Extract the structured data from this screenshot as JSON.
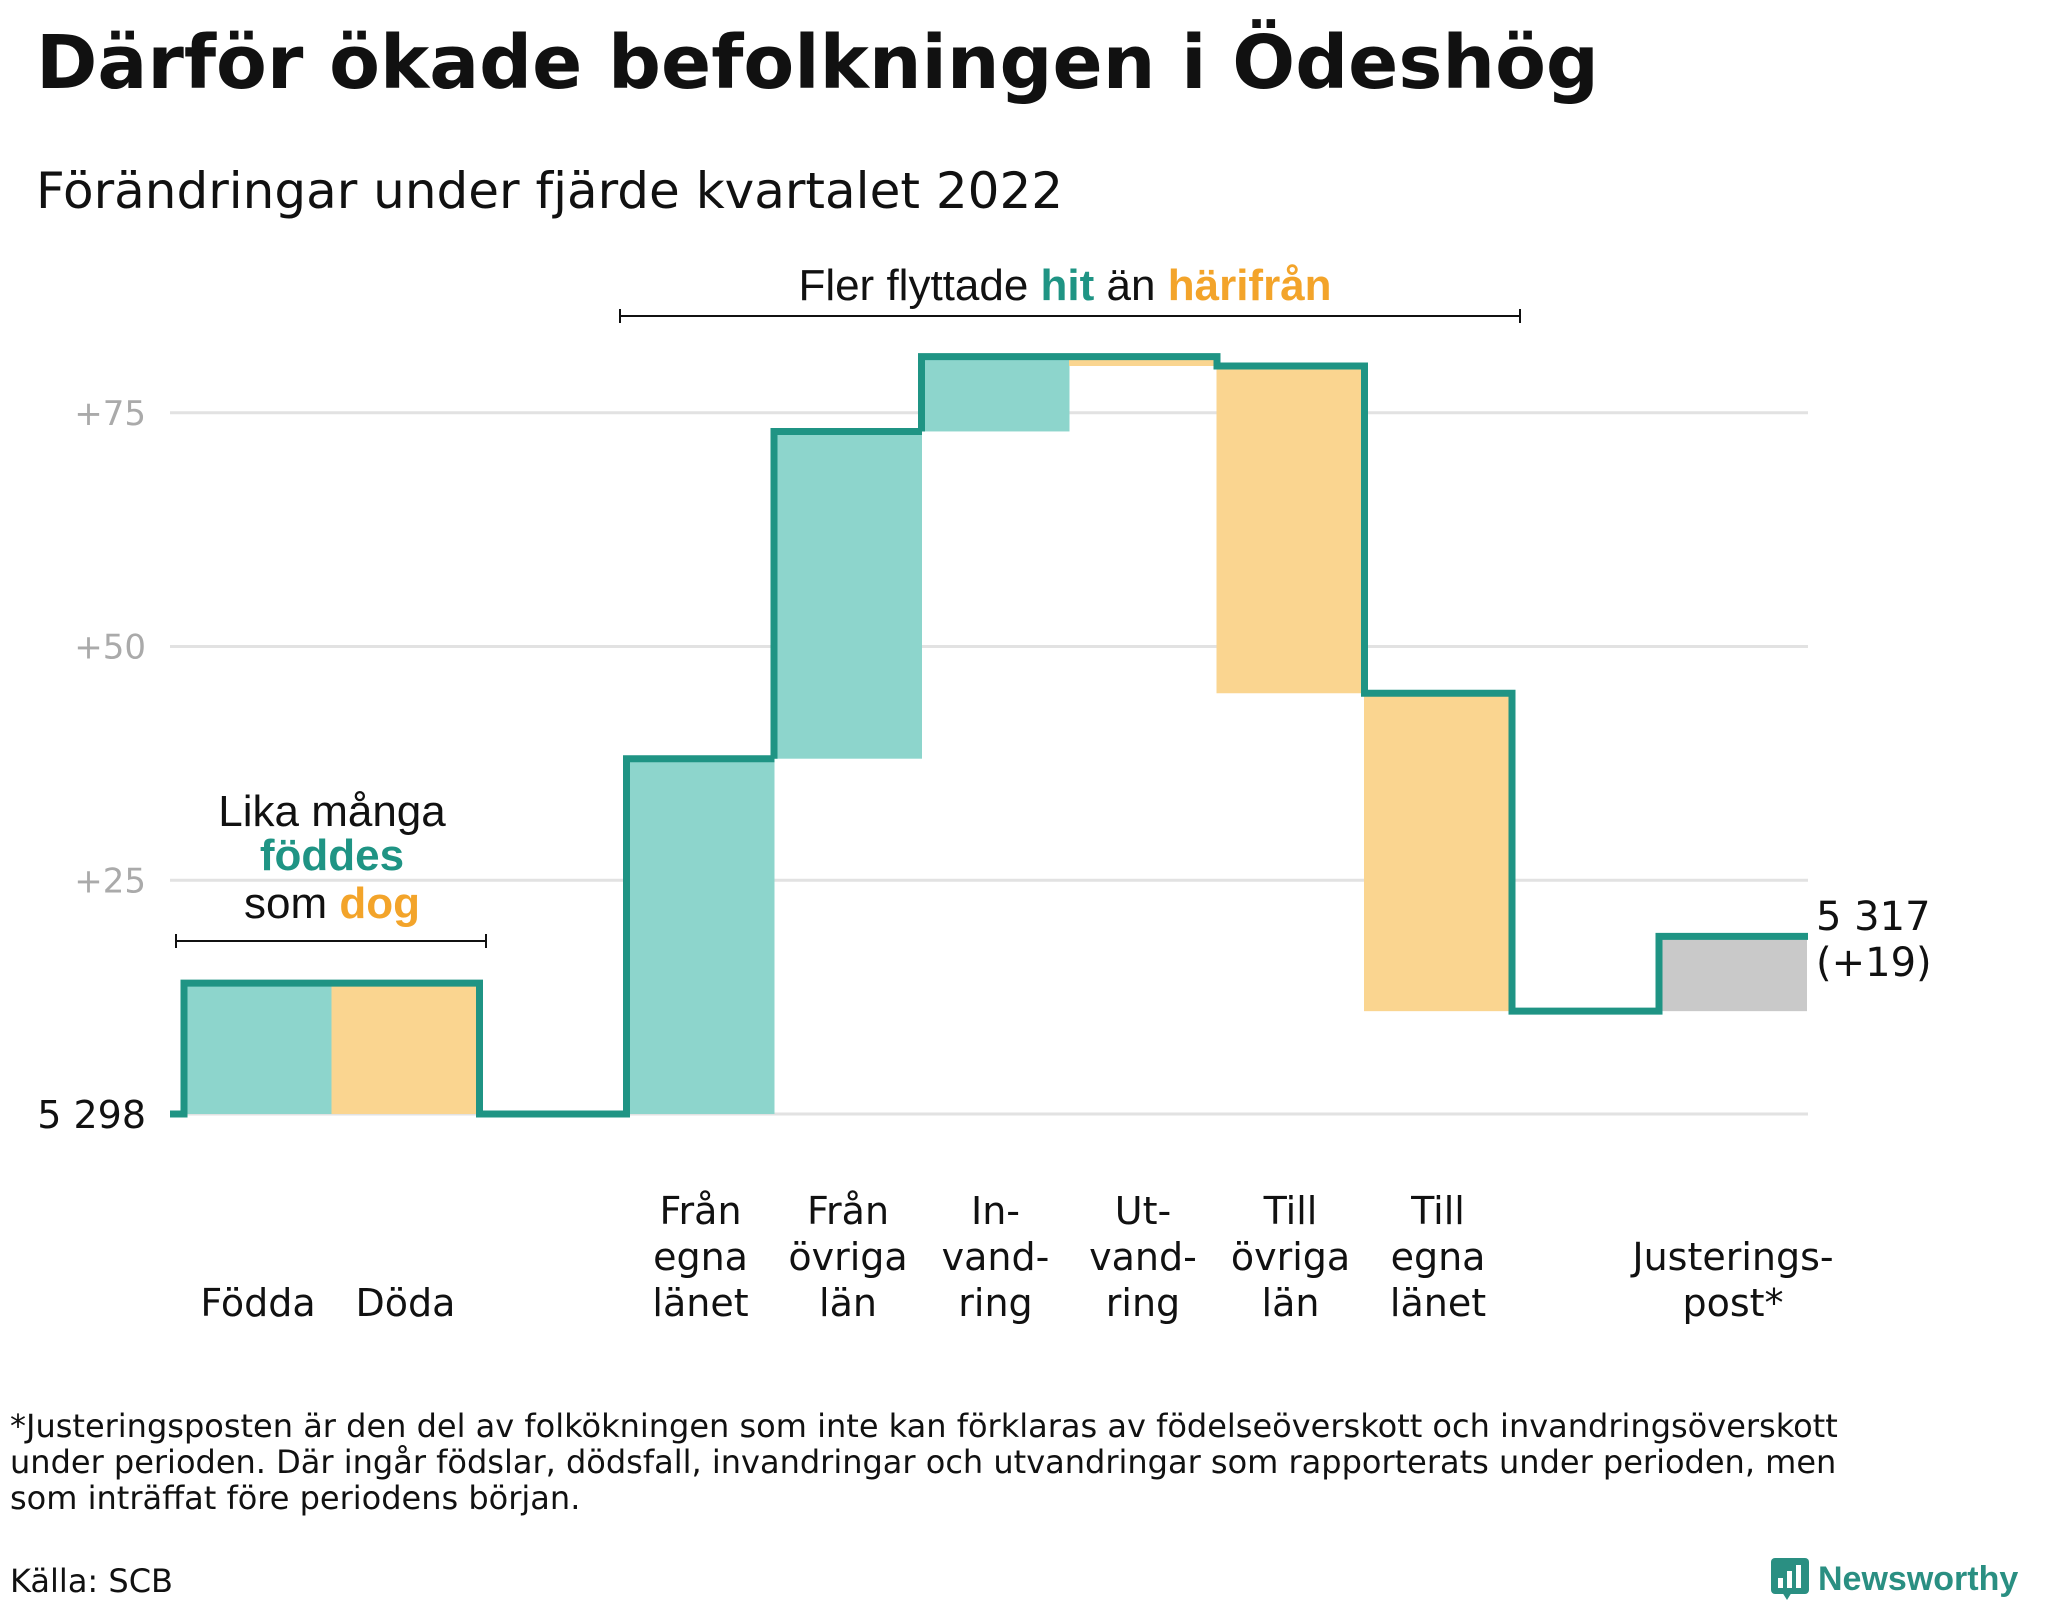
{
  "title": "Därför ökade befolkningen i Ödeshög",
  "subtitle": "Förändringar under fjärde kvartalet 2022",
  "chart_data": {
    "type": "waterfall",
    "baseline": 5298,
    "baseline_label": "5 298",
    "final_value": 5317,
    "ylim": [
      0,
      82
    ],
    "yticks": [
      {
        "value": 25,
        "label": "+25"
      },
      {
        "value": 50,
        "label": "+50"
      },
      {
        "value": 75,
        "label": "+75"
      }
    ],
    "grid": true,
    "categories": [
      {
        "lines": [
          "Födda"
        ],
        "delta": 14,
        "kind": "in"
      },
      {
        "lines": [
          "Döda"
        ],
        "delta": -14,
        "kind": "out"
      },
      {
        "lines": [
          "Från",
          "egna",
          "länet"
        ],
        "delta": 38,
        "kind": "in"
      },
      {
        "lines": [
          "Från",
          "övriga",
          "län"
        ],
        "delta": 35,
        "kind": "in"
      },
      {
        "lines": [
          "In-",
          "vand-",
          "ring"
        ],
        "delta": 8,
        "kind": "in"
      },
      {
        "lines": [
          "Ut-",
          "vand-",
          "ring"
        ],
        "delta": -1,
        "kind": "out"
      },
      {
        "lines": [
          "Till",
          "övriga",
          "län"
        ],
        "delta": -35,
        "kind": "out"
      },
      {
        "lines": [
          "Till",
          "egna",
          "länet"
        ],
        "delta": -34,
        "kind": "out"
      },
      {
        "lines": [
          "Justerings-",
          "post*"
        ],
        "delta": 8,
        "kind": "adjust"
      }
    ],
    "end_label": {
      "value": "5 317",
      "change": "(+19)"
    },
    "annotations": {
      "births": {
        "line1": "Lika många",
        "word_in": "föddes",
        "word_mid": "som",
        "word_out": "dog"
      },
      "migration": {
        "prefix": "Fler flyttade",
        "word_in": "hit",
        "middle": "än",
        "word_out": "härifrån"
      }
    }
  },
  "colors": {
    "in_fill": "#8dd5cc",
    "out_fill": "#fad590",
    "adjust_fill": "#c9c9c9",
    "step_line": "#1f9484",
    "in_text": "#1f9484",
    "out_text": "#f3a42a",
    "grid": "#e2e2e2"
  },
  "footnote": [
    "*Justeringsposten är den del av folkökningen som inte kan förklaras av födelseöverskott och invandringsöverskott",
    "under perioden. Där ingår födslar, dödsfall, invandringar och utvandringar som rapporterats under perioden, men",
    "som inträffat före periodens början."
  ],
  "source": "Källa: SCB",
  "logo_text": "Newsworthy"
}
